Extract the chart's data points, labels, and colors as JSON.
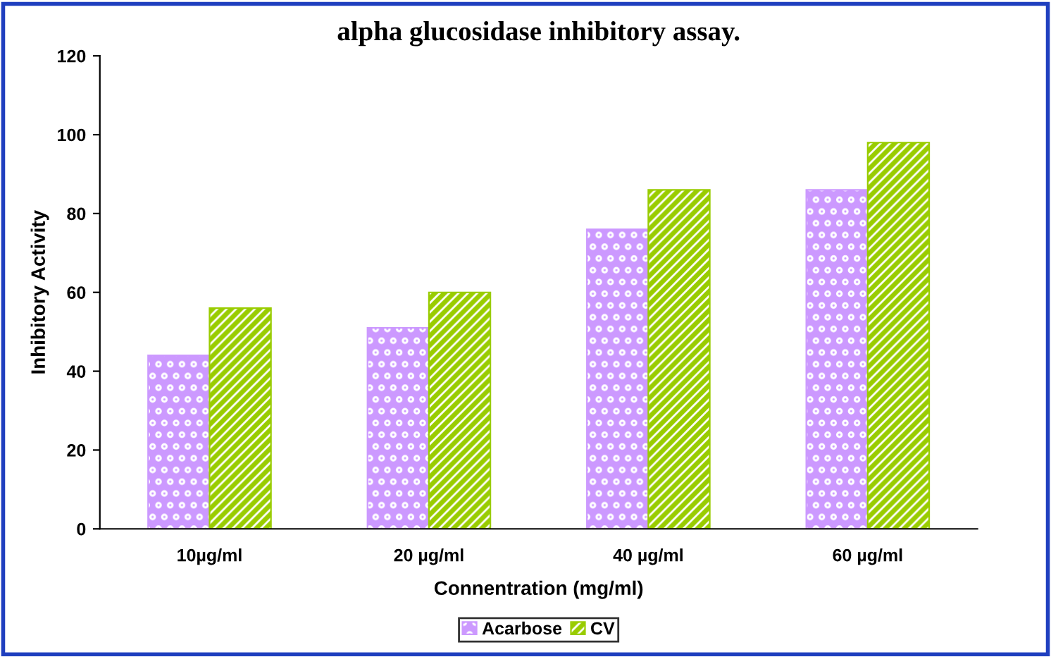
{
  "chart_data": {
    "type": "bar",
    "title": "alpha glucosidase inhibitory assay.",
    "xlabel": "Connentration (mg/ml)",
    "ylabel": "Inhibitory Activity",
    "categories": [
      "10µg/ml",
      "20 µg/ml",
      "40 µg/ml",
      "60 µg/ml"
    ],
    "series": [
      {
        "name": "Acarbose",
        "color": "#cc99ff",
        "values": [
          44,
          51,
          76,
          86
        ]
      },
      {
        "name": "CV",
        "color": "#99cc00",
        "values": [
          56,
          60,
          86,
          98
        ]
      }
    ],
    "ylim": [
      0,
      120
    ],
    "yticks": [
      0,
      20,
      40,
      60,
      80,
      100,
      120
    ],
    "grid": false,
    "legend": "bottom"
  }
}
